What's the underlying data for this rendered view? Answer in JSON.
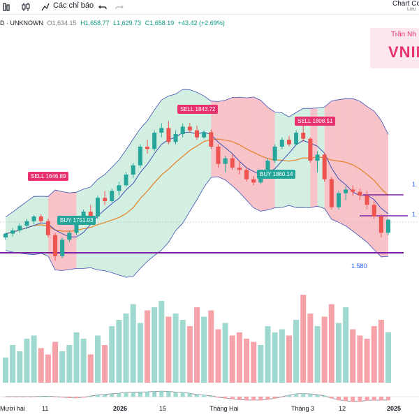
{
  "toolbar": {
    "indicators_label": "Các chỉ báo",
    "undo_icon": "undo-icon",
    "chart_compare_label": "Chart Co",
    "chart_compare_sub": "Lưu"
  },
  "legend": {
    "symbol": "D · UNKNOWN",
    "open": "O1,634.15",
    "high": "H1,658.77",
    "low": "L1,629.73",
    "close": "C1,658.19",
    "change": "+43.42 (+2.69%)"
  },
  "watermark": {
    "subtitle": "Trần Nh",
    "title": "VNIN"
  },
  "signals": [
    {
      "type": "sell",
      "label": "SELL 1646.89"
    },
    {
      "type": "buy",
      "label": "BUY 1751.03"
    },
    {
      "type": "sell",
      "label": "SELL 1843.72"
    },
    {
      "type": "buy",
      "label": "BUY 1860.14"
    },
    {
      "type": "sell",
      "label": "SELL 1808.51"
    }
  ],
  "price_labels": {
    "support": "1.580",
    "right1": "1.",
    "right2": "1."
  },
  "x_axis": [
    "Mười hai",
    "11",
    "2026",
    "15",
    "Tháng Hai",
    "Tháng 3",
    "12",
    "2025"
  ],
  "colors": {
    "bull": "#26a69a",
    "bear": "#ef5350",
    "sell_badge": "#e8316f",
    "buy_badge": "#26a69a",
    "band_green": "#c8ebd9",
    "band_red": "#f6b3bb",
    "ma_orange": "#e67e22",
    "ma_blue": "#3f51b5",
    "support_line": "#7b1fa2"
  },
  "chart_data": {
    "type": "candlestick",
    "candles": [
      [
        1600,
        1610,
        1595,
        1608
      ],
      [
        1608,
        1620,
        1602,
        1615
      ],
      [
        1615,
        1630,
        1610,
        1625
      ],
      [
        1625,
        1640,
        1618,
        1635
      ],
      [
        1635,
        1648,
        1628,
        1645
      ],
      [
        1645,
        1650,
        1630,
        1635
      ],
      [
        1635,
        1640,
        1600,
        1605
      ],
      [
        1605,
        1610,
        1550,
        1560
      ],
      [
        1560,
        1600,
        1555,
        1595
      ],
      [
        1595,
        1615,
        1590,
        1610
      ],
      [
        1610,
        1640,
        1605,
        1635
      ],
      [
        1635,
        1660,
        1630,
        1655
      ],
      [
        1655,
        1670,
        1640,
        1645
      ],
      [
        1645,
        1690,
        1640,
        1685
      ],
      [
        1685,
        1700,
        1670,
        1678
      ],
      [
        1678,
        1705,
        1675,
        1700
      ],
      [
        1700,
        1720,
        1690,
        1712
      ],
      [
        1712,
        1740,
        1708,
        1735
      ],
      [
        1735,
        1760,
        1728,
        1755
      ],
      [
        1755,
        1800,
        1750,
        1795
      ],
      [
        1795,
        1810,
        1780,
        1790
      ],
      [
        1790,
        1830,
        1785,
        1825
      ],
      [
        1825,
        1845,
        1815,
        1835
      ],
      [
        1835,
        1850,
        1800,
        1805
      ],
      [
        1805,
        1830,
        1800,
        1822
      ],
      [
        1822,
        1845,
        1815,
        1838
      ],
      [
        1838,
        1846,
        1825,
        1830
      ],
      [
        1830,
        1840,
        1810,
        1815
      ],
      [
        1815,
        1830,
        1812,
        1826
      ],
      [
        1826,
        1832,
        1790,
        1795
      ],
      [
        1795,
        1800,
        1750,
        1758
      ],
      [
        1758,
        1775,
        1740,
        1770
      ],
      [
        1770,
        1780,
        1745,
        1750
      ],
      [
        1750,
        1765,
        1735,
        1745
      ],
      [
        1745,
        1752,
        1720,
        1725
      ],
      [
        1725,
        1732,
        1712,
        1718
      ],
      [
        1718,
        1740,
        1715,
        1735
      ],
      [
        1735,
        1770,
        1730,
        1765
      ],
      [
        1765,
        1800,
        1760,
        1795
      ],
      [
        1795,
        1815,
        1790,
        1810
      ],
      [
        1810,
        1818,
        1795,
        1800
      ],
      [
        1800,
        1830,
        1798,
        1825
      ],
      [
        1825,
        1840,
        1805,
        1812
      ],
      [
        1812,
        1815,
        1760,
        1765
      ],
      [
        1765,
        1785,
        1740,
        1778
      ],
      [
        1778,
        1782,
        1720,
        1725
      ],
      [
        1725,
        1730,
        1660,
        1665
      ],
      [
        1665,
        1700,
        1660,
        1695
      ],
      [
        1695,
        1710,
        1680,
        1703
      ],
      [
        1703,
        1712,
        1690,
        1698
      ],
      [
        1698,
        1705,
        1680,
        1690
      ],
      [
        1690,
        1700,
        1660,
        1670
      ],
      [
        1670,
        1678,
        1640,
        1645
      ],
      [
        1645,
        1650,
        1600,
        1610
      ],
      [
        1610,
        1640,
        1605,
        1638
      ]
    ],
    "volumes": [
      8,
      12,
      10,
      14,
      15,
      11,
      9,
      13,
      10,
      12,
      16,
      14,
      9,
      15,
      12,
      18,
      20,
      22,
      25,
      19,
      23,
      24,
      26,
      21,
      22,
      20,
      18,
      24,
      21,
      23,
      17,
      19,
      15,
      16,
      14,
      13,
      12,
      18,
      16,
      17,
      15,
      20,
      28,
      22,
      18,
      21,
      25,
      19,
      24,
      17,
      15,
      14,
      18,
      20,
      16
    ]
  }
}
